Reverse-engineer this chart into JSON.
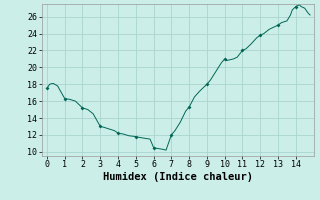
{
  "title": "",
  "xlabel": "Humidex (Indice chaleur)",
  "ylabel": "",
  "bg_color": "#cceee8",
  "grid_color": "#aad4ce",
  "line_color": "#006655",
  "marker_color": "#006655",
  "xlim": [
    -0.3,
    15.0
  ],
  "ylim": [
    9.5,
    27.5
  ],
  "xticks": [
    0,
    1,
    2,
    3,
    4,
    5,
    6,
    7,
    8,
    9,
    10,
    11,
    12,
    13,
    14
  ],
  "yticks": [
    10,
    12,
    14,
    16,
    18,
    20,
    22,
    24,
    26
  ],
  "x_data": [
    0.0,
    0.15,
    0.35,
    0.6,
    1.0,
    1.3,
    1.6,
    2.0,
    2.3,
    2.6,
    3.0,
    3.2,
    3.5,
    3.8,
    4.0,
    4.3,
    4.6,
    5.0,
    5.2,
    5.5,
    5.8,
    6.0,
    6.2,
    6.5,
    6.7,
    7.0,
    7.2,
    7.5,
    7.8,
    8.0,
    8.3,
    8.6,
    9.0,
    9.2,
    9.5,
    9.8,
    10.0,
    10.1,
    10.3,
    10.5,
    10.7,
    11.0,
    11.2,
    11.5,
    11.8,
    12.0,
    12.2,
    12.5,
    12.8,
    13.0,
    13.2,
    13.5,
    13.7,
    13.8,
    14.0,
    14.1,
    14.2,
    14.3,
    14.5,
    14.6,
    14.7,
    14.8
  ],
  "y_data": [
    17.5,
    18.0,
    18.1,
    17.8,
    16.3,
    16.2,
    16.0,
    15.2,
    15.0,
    14.5,
    13.0,
    12.9,
    12.7,
    12.5,
    12.2,
    12.1,
    11.9,
    11.8,
    11.7,
    11.6,
    11.5,
    10.5,
    10.4,
    10.3,
    10.2,
    12.0,
    12.5,
    13.5,
    14.8,
    15.3,
    16.5,
    17.2,
    18.0,
    18.5,
    19.5,
    20.5,
    21.0,
    20.8,
    20.9,
    21.0,
    21.2,
    22.0,
    22.2,
    22.8,
    23.5,
    23.8,
    24.0,
    24.5,
    24.8,
    25.0,
    25.3,
    25.5,
    26.2,
    26.8,
    27.2,
    27.3,
    27.4,
    27.2,
    27.0,
    26.7,
    26.4,
    26.2
  ],
  "marker_x": [
    0.0,
    1.0,
    2.0,
    3.0,
    4.0,
    5.0,
    6.0,
    7.0,
    8.0,
    9.0,
    10.0,
    11.0,
    12.0,
    13.0,
    14.0
  ],
  "marker_y": [
    17.5,
    16.3,
    15.2,
    13.0,
    12.2,
    11.8,
    10.5,
    12.0,
    15.3,
    18.0,
    21.0,
    22.0,
    23.8,
    25.0,
    27.2
  ],
  "tick_fontsize": 6,
  "xlabel_fontsize": 7.5
}
